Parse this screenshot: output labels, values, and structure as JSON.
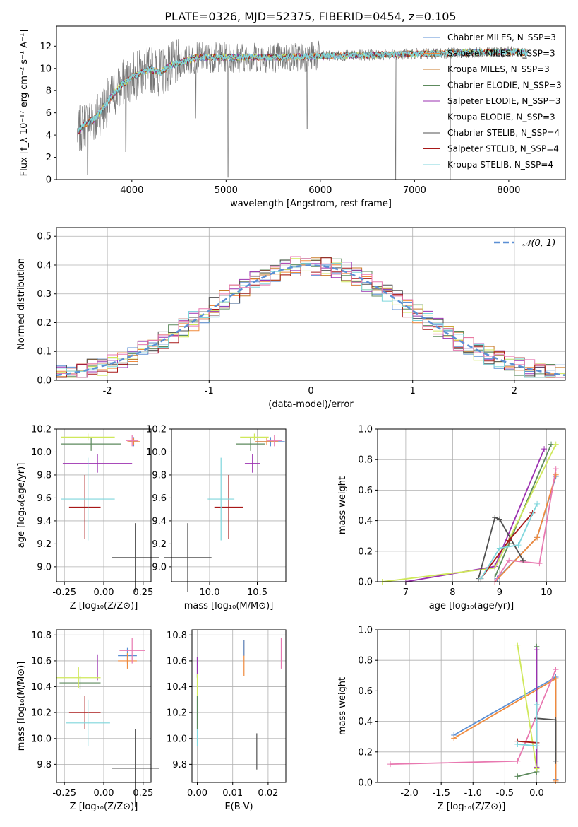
{
  "figure_title": "PLATE=0326, MJD=52375, FIBERID=0454, z=0.105",
  "colors": {
    "Chabrier MILES": "#5b8fd4",
    "Salpeter MILES": "#f08a3c",
    "Kroupa MILES": "#c97a28",
    "Chabrier ELODIE": "#5d8a5d",
    "Salpeter ELODIE": "#9b30b0",
    "Kroupa ELODIE": "#cfe85a",
    "Chabrier STELIB": "#505050",
    "Salpeter STELIB": "#a81818",
    "Kroupa STELIB": "#7fd6dc",
    "pink": "#e878b0",
    "data": "#777777",
    "normal": "#5b8fd4"
  },
  "chart_data": [
    {
      "type": "line",
      "xlabel": "wavelength [Angstrom, rest frame]",
      "ylabel": "Flux [f_λ 10⁻¹⁷ erg cm⁻² s⁻¹ A⁻¹]",
      "xlim": [
        3200,
        8600
      ],
      "ylim": [
        0,
        13.8
      ],
      "xticks": [
        4000,
        5000,
        6000,
        7000,
        8000
      ],
      "yticks": [
        0,
        2,
        4,
        6,
        8,
        10,
        12
      ],
      "grid": false,
      "legend_position": "right",
      "series": [
        {
          "name": "Chabrier MILES, N_SSP=3",
          "color_key": "Chabrier MILES"
        },
        {
          "name": "Salpeter MILES, N_SSP=3",
          "color_key": "Salpeter MILES"
        },
        {
          "name": "Kroupa MILES, N_SSP=3",
          "color_key": "Kroupa MILES"
        },
        {
          "name": "Chabrier ELODIE, N_SSP=3",
          "color_key": "Chabrier ELODIE"
        },
        {
          "name": "Salpeter ELODIE, N_SSP=3",
          "color_key": "Salpeter ELODIE"
        },
        {
          "name": "Kroupa ELODIE, N_SSP=3",
          "color_key": "Kroupa ELODIE"
        },
        {
          "name": "Chabrier STELIB, N_SSP=4",
          "color_key": "Chabrier STELIB"
        },
        {
          "name": "Salpeter STELIB, N_SSP=4",
          "color_key": "Salpeter STELIB"
        },
        {
          "name": "Kroupa STELIB, N_SSP=4",
          "color_key": "Kroupa STELIB"
        }
      ],
      "spectrum_envelope": {
        "x": [
          3420,
          3500,
          3600,
          3700,
          3800,
          3900,
          4000,
          4100,
          4200,
          4300,
          4400,
          4500,
          4700,
          5000,
          5500,
          6000,
          6500,
          7000,
          7500,
          8000,
          8200
        ],
        "y": [
          4.2,
          5.0,
          5.4,
          6.5,
          7.6,
          8.6,
          9.2,
          9.6,
          9.9,
          9.6,
          10.2,
          10.5,
          11.0,
          11.0,
          11.0,
          11.1,
          11.2,
          11.3,
          11.4,
          11.5,
          11.4
        ]
      }
    },
    {
      "type": "line",
      "xlabel": "(data-model)/error",
      "ylabel": "Normed distribution",
      "xlim": [
        -2.5,
        2.5
      ],
      "ylim": [
        0,
        0.53
      ],
      "xticks": [
        -2,
        -1,
        0,
        1,
        2
      ],
      "yticks": [
        0.0,
        0.1,
        0.2,
        0.3,
        0.4,
        0.5
      ],
      "grid": true,
      "legend": "𝒩(0, 1)",
      "legend_position": "top-right",
      "bin_width": 0.1,
      "bin_start": -2.5
    },
    {
      "type": "scatter",
      "xlabel": "Z [log₁₀(Z/Z⊙)]",
      "ylabel": "age  [log₁₀(age/yr)]",
      "xlim": [
        -0.3,
        0.3
      ],
      "ylim": [
        8.87,
        10.2
      ],
      "xticks": [
        -0.25,
        0.0,
        0.25
      ],
      "yticks": [
        9.0,
        9.2,
        9.4,
        9.6,
        9.8,
        10.0,
        10.2
      ],
      "grid": true,
      "points": [
        {
          "color_key": "Chabrier MILES",
          "x": 0.19,
          "y": 10.09,
          "xerr": 0.03,
          "yerr": 0.04
        },
        {
          "color_key": "Salpeter MILES",
          "x": 0.19,
          "y": 10.09,
          "xerr": 0.04,
          "yerr": 0.03
        },
        {
          "color_key": "pink",
          "x": 0.18,
          "y": 10.1,
          "xerr": 0.04,
          "yerr": 0.05
        },
        {
          "color_key": "Chabrier ELODIE",
          "x": -0.08,
          "y": 10.07,
          "xerr": 0.19,
          "yerr": 0.06
        },
        {
          "color_key": "Salpeter ELODIE",
          "x": -0.04,
          "y": 9.9,
          "xerr": 0.22,
          "yerr": 0.08
        },
        {
          "color_key": "Kroupa ELODIE",
          "x": -0.1,
          "y": 10.13,
          "xerr": 0.17,
          "yerr": 0.03
        },
        {
          "color_key": "Chabrier STELIB",
          "x": 0.2,
          "y": 9.08,
          "xerr": 0.15,
          "yerr": 0.3
        },
        {
          "color_key": "Salpeter STELIB",
          "x": -0.12,
          "y": 9.52,
          "xerr": 0.1,
          "yerr": 0.28
        },
        {
          "color_key": "Kroupa STELIB",
          "x": -0.1,
          "y": 9.59,
          "xerr": 0.17,
          "yerr": 0.36
        }
      ]
    },
    {
      "type": "scatter",
      "xlabel": "mass [log₁₀(M/M⊙)]",
      "ylabel": "",
      "xlim": [
        9.6,
        10.8
      ],
      "ylim": [
        8.87,
        10.2
      ],
      "xticks": [
        10.0,
        10.5
      ],
      "yticks": [
        9.0,
        9.2,
        9.4,
        9.6,
        9.8,
        10.0,
        10.2
      ],
      "grid": true,
      "points": [
        {
          "color_key": "Chabrier MILES",
          "x": 10.64,
          "y": 10.09,
          "xerr": 0.15,
          "yerr": 0.04
        },
        {
          "color_key": "Salpeter MILES",
          "x": 10.6,
          "y": 10.09,
          "xerr": 0.12,
          "yerr": 0.03
        },
        {
          "color_key": "pink",
          "x": 10.68,
          "y": 10.1,
          "xerr": 0.08,
          "yerr": 0.05
        },
        {
          "color_key": "Chabrier ELODIE",
          "x": 10.43,
          "y": 10.07,
          "xerr": 0.15,
          "yerr": 0.06
        },
        {
          "color_key": "Salpeter ELODIE",
          "x": 10.45,
          "y": 9.9,
          "xerr": 0.08,
          "yerr": 0.08
        },
        {
          "color_key": "Kroupa ELODIE",
          "x": 10.47,
          "y": 10.13,
          "xerr": 0.15,
          "yerr": 0.03
        },
        {
          "color_key": "Chabrier STELIB",
          "x": 9.77,
          "y": 9.08,
          "xerr": 0.25,
          "yerr": 0.3
        },
        {
          "color_key": "Salpeter STELIB",
          "x": 10.2,
          "y": 9.52,
          "xerr": 0.15,
          "yerr": 0.28
        },
        {
          "color_key": "Kroupa STELIB",
          "x": 10.12,
          "y": 9.59,
          "xerr": 0.14,
          "yerr": 0.36
        }
      ]
    },
    {
      "type": "line",
      "xlabel": "age  [log₁₀(age/yr)]",
      "ylabel": "mass weight",
      "xlim": [
        6.4,
        10.4
      ],
      "ylim": [
        0,
        1.0
      ],
      "xticks": [
        7,
        8,
        9,
        10
      ],
      "yticks": [
        0.0,
        0.2,
        0.4,
        0.6,
        0.8,
        1.0
      ],
      "grid": true,
      "series": [
        {
          "color_key": "Chabrier MILES",
          "x": [
            8.95,
            9.8,
            10.2
          ],
          "y": [
            0.02,
            0.29,
            0.69
          ]
        },
        {
          "color_key": "Salpeter MILES",
          "x": [
            8.9,
            9.8,
            10.2
          ],
          "y": [
            0.0,
            0.29,
            0.7
          ]
        },
        {
          "color_key": "pink",
          "x": [
            8.9,
            9.2,
            9.85,
            10.2
          ],
          "y": [
            0.0,
            0.14,
            0.12,
            0.74
          ]
        },
        {
          "color_key": "Chabrier ELODIE",
          "x": [
            8.9,
            9.2,
            10.1
          ],
          "y": [
            0.03,
            0.25,
            0.9
          ]
        },
        {
          "color_key": "Salpeter ELODIE",
          "x": [
            7.0,
            8.9,
            9.95
          ],
          "y": [
            0.0,
            0.1,
            0.87
          ]
        },
        {
          "color_key": "Kroupa ELODIE",
          "x": [
            6.5,
            8.9,
            10.2
          ],
          "y": [
            0.0,
            0.09,
            0.9
          ]
        },
        {
          "color_key": "Chabrier STELIB",
          "x": [
            8.55,
            8.9,
            9.0,
            9.5
          ],
          "y": [
            0.02,
            0.42,
            0.41,
            0.14
          ]
        },
        {
          "color_key": "Salpeter STELIB",
          "x": [
            8.6,
            9.2,
            9.7
          ],
          "y": [
            0.02,
            0.27,
            0.45
          ]
        },
        {
          "color_key": "Kroupa STELIB",
          "x": [
            8.6,
            9.0,
            9.4,
            9.8
          ],
          "y": [
            0.02,
            0.22,
            0.24,
            0.51
          ]
        }
      ]
    },
    {
      "type": "scatter",
      "xlabel": "Z [log₁₀(Z/Z⊙)]",
      "ylabel": "mass [log₁₀(M/M⊙)]",
      "xlim": [
        -0.3,
        0.3
      ],
      "ylim": [
        9.66,
        10.84
      ],
      "xticks": [
        -0.25,
        0.0,
        0.25
      ],
      "yticks": [
        9.8,
        10.0,
        10.2,
        10.4,
        10.6,
        10.8
      ],
      "grid": true,
      "points": [
        {
          "color_key": "Chabrier MILES",
          "x": 0.15,
          "y": 10.64,
          "xerr": 0.06,
          "yerr": 0.06
        },
        {
          "color_key": "Salpeter MILES",
          "x": 0.15,
          "y": 10.6,
          "xerr": 0.06,
          "yerr": 0.06
        },
        {
          "color_key": "pink",
          "x": 0.18,
          "y": 10.68,
          "xerr": 0.08,
          "yerr": 0.1
        },
        {
          "color_key": "Chabrier ELODIE",
          "x": -0.15,
          "y": 10.43,
          "xerr": 0.13,
          "yerr": 0.05
        },
        {
          "color_key": "Salpeter ELODIE",
          "x": -0.04,
          "y": 10.55,
          "xerr": 0.0,
          "yerr": 0.1
        },
        {
          "color_key": "Kroupa ELODIE",
          "x": -0.16,
          "y": 10.47,
          "xerr": 0.14,
          "yerr": 0.08
        },
        {
          "color_key": "Chabrier STELIB",
          "x": 0.2,
          "y": 9.77,
          "xerr": 0.15,
          "yerr": 0.3
        },
        {
          "color_key": "Salpeter STELIB",
          "x": -0.12,
          "y": 10.2,
          "xerr": 0.1,
          "yerr": 0.13
        },
        {
          "color_key": "Kroupa STELIB",
          "x": -0.1,
          "y": 10.12,
          "xerr": 0.14,
          "yerr": 0.18
        }
      ]
    },
    {
      "type": "scatter",
      "xlabel": "E(B-V)",
      "ylabel": "",
      "xlim": [
        -0.0015,
        0.025
      ],
      "ylim": [
        9.66,
        10.84
      ],
      "xticks": [
        0.0,
        0.01,
        0.02
      ],
      "yticks": [
        9.8,
        10.0,
        10.2,
        10.4,
        10.6,
        10.8
      ],
      "grid": true,
      "points": [
        {
          "color_key": "Chabrier MILES",
          "x": 0.0,
          "y": 10.55,
          "xerr": 0,
          "yerr": 0.08
        },
        {
          "color_key": "Salpeter ELODIE",
          "x": 0.0,
          "y": 10.55,
          "xerr": 0,
          "yerr": 0.08
        },
        {
          "color_key": "Kroupa ELODIE",
          "x": 0.0,
          "y": 10.4,
          "xerr": 0,
          "yerr": 0.1
        },
        {
          "color_key": "Kroupa STELIB",
          "x": 0.0,
          "y": 10.12,
          "xerr": 0,
          "yerr": 0.18
        },
        {
          "color_key": "Chabrier ELODIE",
          "x": 0.0,
          "y": 10.2,
          "xerr": 0,
          "yerr": 0.13
        },
        {
          "color_key": "Salpeter MILES",
          "x": 0.0132,
          "y": 10.62,
          "xerr": 0,
          "yerr": 0.14
        },
        {
          "color_key": "Chabrier MILES",
          "x": 0.0132,
          "y": 10.7,
          "xerr": 0,
          "yerr": 0.06
        },
        {
          "color_key": "Chabrier STELIB",
          "x": 0.0168,
          "y": 9.9,
          "xerr": 0,
          "yerr": 0.14
        },
        {
          "color_key": "pink",
          "x": 0.0237,
          "y": 10.66,
          "xerr": 0,
          "yerr": 0.12
        }
      ]
    },
    {
      "type": "line",
      "xlabel": "Z [log₁₀(Z/Z⊙)]",
      "ylabel": "mass weight",
      "xlim": [
        -2.5,
        0.45
      ],
      "ylim": [
        0,
        1.0
      ],
      "xticks": [
        -2.0,
        -1.5,
        -1.0,
        -0.5,
        0.0
      ],
      "yticks": [
        0.0,
        0.2,
        0.4,
        0.6,
        0.8,
        1.0
      ],
      "grid": true,
      "series": [
        {
          "color_key": "Chabrier MILES",
          "x": [
            -1.3,
            0.3,
            0.3
          ],
          "y": [
            0.31,
            0.69,
            0.02
          ]
        },
        {
          "color_key": "Salpeter MILES",
          "x": [
            -1.3,
            0.3,
            0.3
          ],
          "y": [
            0.29,
            0.68,
            0.01
          ]
        },
        {
          "color_key": "pink",
          "x": [
            -2.3,
            -0.3,
            0.3
          ],
          "y": [
            0.12,
            0.14,
            0.74
          ]
        },
        {
          "color_key": "Chabrier ELODIE",
          "x": [
            -0.3,
            0.0,
            0.0
          ],
          "y": [
            0.04,
            0.07,
            0.89
          ]
        },
        {
          "color_key": "Salpeter ELODIE",
          "x": [
            0.0,
            0.0
          ],
          "y": [
            0.1,
            0.87
          ]
        },
        {
          "color_key": "Kroupa ELODIE",
          "x": [
            -0.3,
            0.0
          ],
          "y": [
            0.9,
            0.09
          ]
        },
        {
          "color_key": "Chabrier STELIB",
          "x": [
            0.0,
            0.3,
            0.3
          ],
          "y": [
            0.42,
            0.41,
            0.14
          ]
        },
        {
          "color_key": "Salpeter STELIB",
          "x": [
            -0.3,
            0.0
          ],
          "y": [
            0.27,
            0.26
          ]
        },
        {
          "color_key": "Kroupa STELIB",
          "x": [
            -0.3,
            0.0,
            0.0
          ],
          "y": [
            0.25,
            0.24,
            0.51
          ]
        }
      ]
    }
  ]
}
